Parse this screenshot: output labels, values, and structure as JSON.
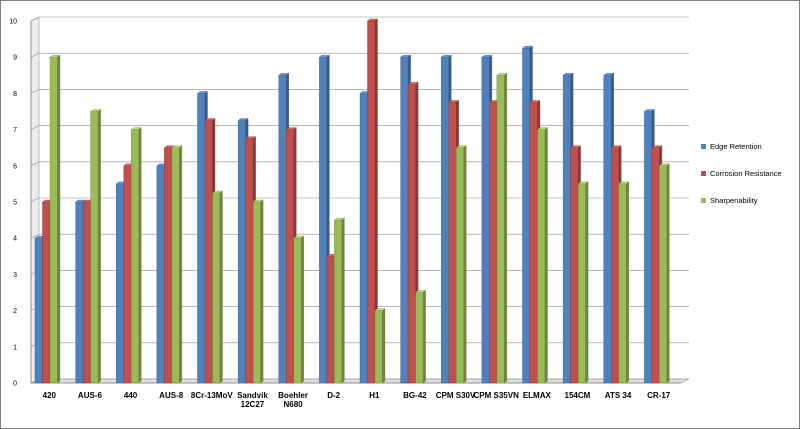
{
  "chart_data": {
    "type": "bar",
    "style": "3d-clustered-column",
    "categories": [
      [
        "420"
      ],
      [
        "AUS-6"
      ],
      [
        "440"
      ],
      [
        "AUS-8"
      ],
      [
        "8Cr-13MoV"
      ],
      [
        "Sandvik",
        "12C27"
      ],
      [
        "Boehler",
        "N680"
      ],
      [
        "D-2"
      ],
      [
        "H1"
      ],
      [
        "BG-42"
      ],
      [
        "CPM S30V"
      ],
      [
        "CPM S35VN"
      ],
      [
        "ELMAX"
      ],
      [
        "154CM"
      ],
      [
        "ATS 34"
      ],
      [
        "CR-17"
      ]
    ],
    "series": [
      {
        "name": "Edge Retention",
        "color": "#4f81bd",
        "values": [
          4,
          5,
          5.5,
          6,
          8,
          7.25,
          8.5,
          9,
          8,
          9,
          9,
          9,
          9.25,
          8.5,
          8.5,
          7.5
        ]
      },
      {
        "name": "Corrosion Resistance",
        "color": "#c0504d",
        "values": [
          5,
          5,
          6,
          6.5,
          7.25,
          6.75,
          7,
          3.5,
          10,
          8.25,
          7.75,
          7.75,
          7.75,
          6.5,
          6.5,
          6.5
        ]
      },
      {
        "name": "Sharpenability",
        "color": "#9bbb59",
        "values": [
          9,
          7.5,
          7,
          6.5,
          5.25,
          5,
          4,
          4.5,
          2,
          2.5,
          6.5,
          8.5,
          7,
          5.5,
          5.5,
          6
        ]
      }
    ],
    "yticks": [
      "0",
      "1",
      "2",
      "3",
      "4",
      "5",
      "6",
      "7",
      "8",
      "9",
      "10"
    ],
    "ylim": [
      0,
      10
    ],
    "grid": true,
    "legend": "right",
    "title": "",
    "xlabel": "",
    "ylabel": ""
  }
}
